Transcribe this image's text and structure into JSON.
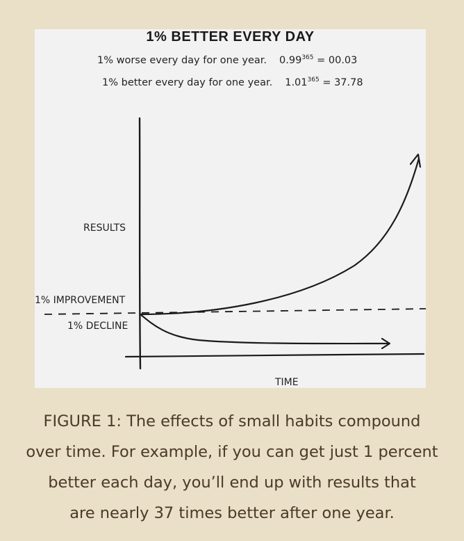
{
  "figure": {
    "title": "1% BETTER EVERY DAY",
    "formula_worse": {
      "text": "1% worse every day for one year.",
      "base": "0.99",
      "exponent": "365",
      "result": "= 00.03"
    },
    "formula_better": {
      "text": "1% better every day for one year.",
      "base": "1.01",
      "exponent": "365",
      "result": "= 37.78"
    },
    "labels": {
      "y_axis": "RESULTS",
      "x_axis": "TIME",
      "improvement": "1% IMPROVEMENT",
      "decline": "1% DECLINE"
    }
  },
  "caption": {
    "line1": "FIGURE 1: The effects of small habits compound",
    "line2": "over time. For example, if you can get just 1 percent",
    "line3": "better each day, you’ll end up with results that",
    "line4": "are nearly 37 times better after one year."
  },
  "colors": {
    "page_background": "#eadfc7",
    "panel_background": "#f2f2f2",
    "ink": "#1a1a1a",
    "caption_text": "#4a3a28"
  }
}
